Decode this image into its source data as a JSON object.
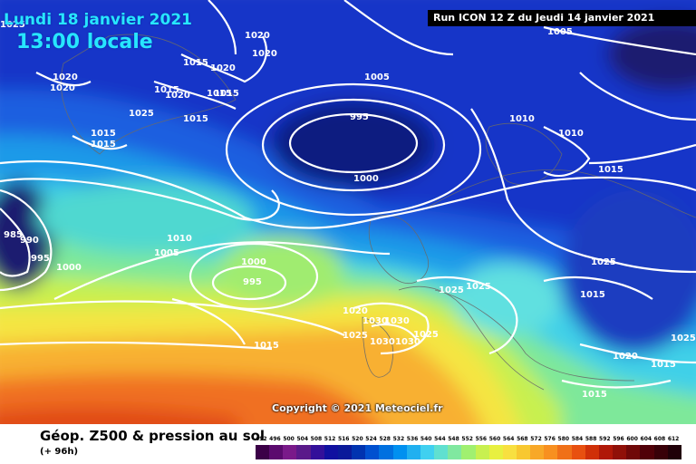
{
  "header": {
    "date": "Lundi 18 janvier 2021",
    "local_time": "13:00 locale",
    "run_info": "Run ICON 12 Z du Jeudi 14 janvier 2021"
  },
  "copyright": "Copyright © 2021 Meteociel.fr",
  "footer": {
    "title": "Géop. Z500 & pression au sol",
    "subtitle": "(+ 96h)"
  },
  "scale": {
    "labels": [
      "492",
      "496",
      "500",
      "504",
      "508",
      "512",
      "516",
      "520",
      "524",
      "528",
      "532",
      "536",
      "540",
      "544",
      "548",
      "552",
      "556",
      "560",
      "564",
      "568",
      "572",
      "576",
      "580",
      "584",
      "588",
      "592",
      "596",
      "600",
      "604",
      "608",
      "612"
    ],
    "colors": [
      "#3b0047",
      "#5b0a6e",
      "#7a1a8a",
      "#5a1a8a",
      "#33109a",
      "#1010a0",
      "#0a1a9a",
      "#0033b0",
      "#0050d0",
      "#0070e0",
      "#0090f0",
      "#20b0f0",
      "#40d0f0",
      "#60e0d0",
      "#80e8a0",
      "#a0f070",
      "#c8f050",
      "#e8f040",
      "#f8e040",
      "#f8c830",
      "#f8a828",
      "#f89020",
      "#f07018",
      "#e85010",
      "#d03008",
      "#b01808",
      "#901008",
      "#700808",
      "#500008",
      "#380008",
      "#200008"
    ]
  },
  "isobar_labels": [
    "1025",
    "1020",
    "1020",
    "1020",
    "1015",
    "1020",
    "1020",
    "1005",
    "1015",
    "1015",
    "1015",
    "1020",
    "1015",
    "1025",
    "1015",
    "1015",
    "995",
    "1010",
    "1010",
    "1015",
    "1000",
    "985",
    "990",
    "995",
    "1000",
    "1010",
    "1005",
    "1000",
    "995",
    "1015",
    "1020",
    "1030",
    "1030",
    "1025",
    "1030",
    "1030",
    "1025",
    "1025",
    "1025",
    "1025",
    "1015",
    "1025",
    "1020",
    "1015",
    "1015",
    "1005"
  ],
  "colors": {
    "title": "#27e6ff",
    "isobar": "#ffffff"
  }
}
